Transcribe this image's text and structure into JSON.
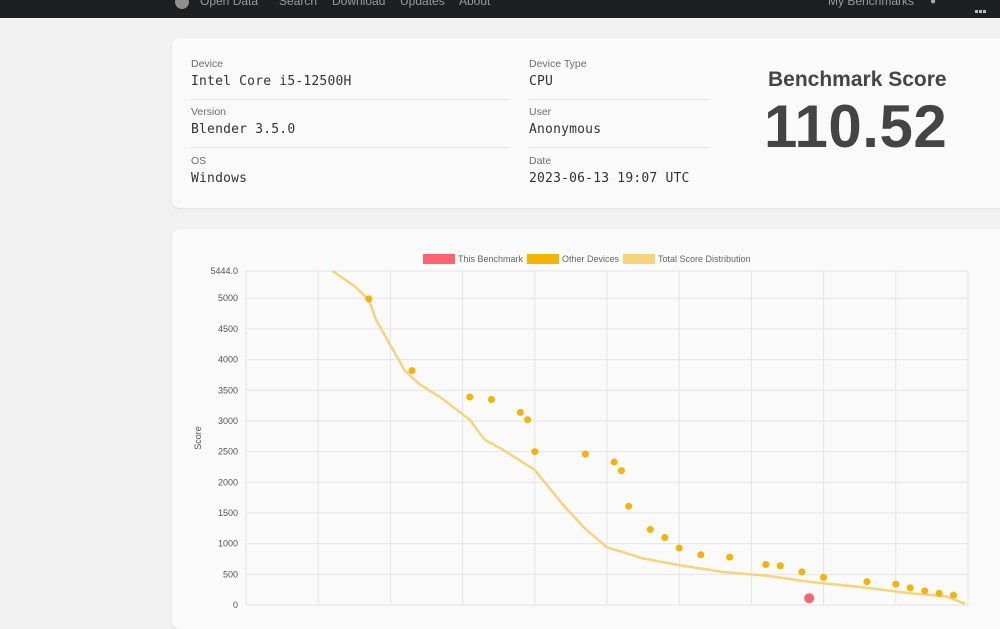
{
  "nav": {
    "items": [
      "Open Data",
      "Search",
      "Download",
      "Updates",
      "About"
    ],
    "right_label": "My Benchmarks"
  },
  "info": {
    "device_label": "Device",
    "device_value": "Intel Core i5-12500H",
    "version_label": "Version",
    "version_value": "Blender 3.5.0",
    "os_label": "OS",
    "os_value": "Windows",
    "device_type_label": "Device Type",
    "device_type_value": "CPU",
    "user_label": "User",
    "user_value": "Anonymous",
    "date_label": "Date",
    "date_value": "2023-06-13 19:07 UTC",
    "score_title": "Benchmark Score",
    "score_value": "110.52"
  },
  "colors": {
    "this_benchmark": "#ff6371",
    "other_devices": "#f6b400",
    "total_distribution": "#f5d57a",
    "card_bg": "#fafafa",
    "topbar_bg": "#1d1f21"
  },
  "chart_data": {
    "type": "line",
    "legend": [
      "This Benchmark",
      "Other Devices",
      "Total Score Distribution"
    ],
    "legend_position": "top-center",
    "ylabel": "Score",
    "ylim": [
      0,
      5444.0
    ],
    "y_ticks": [
      "5444.0",
      "5000",
      "4500",
      "4000",
      "3500",
      "3000",
      "2500",
      "2000",
      "1500",
      "1000",
      "500",
      "0"
    ],
    "grid": true,
    "series": [
      {
        "name": "Total Score Distribution",
        "x": [
          0.12,
          0.15,
          0.17,
          0.18,
          0.22,
          0.24,
          0.27,
          0.31,
          0.33,
          0.36,
          0.38,
          0.4,
          0.44,
          0.47,
          0.5,
          0.55,
          0.6,
          0.66,
          0.72,
          0.78,
          0.86,
          0.92,
          0.97,
          0.996
        ],
        "values": [
          5444,
          5200,
          4980,
          4650,
          3820,
          3600,
          3380,
          3020,
          2700,
          2500,
          2350,
          2200,
          1620,
          1240,
          940,
          760,
          650,
          540,
          480,
          380,
          280,
          190,
          140,
          20
        ]
      },
      {
        "name": "Other Devices",
        "x": [
          0.17,
          0.23,
          0.31,
          0.34,
          0.38,
          0.39,
          0.4,
          0.47,
          0.51,
          0.52,
          0.53,
          0.56,
          0.58,
          0.6,
          0.63,
          0.67,
          0.72,
          0.74,
          0.77,
          0.8,
          0.86,
          0.9,
          0.92,
          0.94,
          0.96,
          0.98
        ],
        "values": [
          4990,
          3820,
          3390,
          3350,
          3140,
          3020,
          2500,
          2460,
          2330,
          2190,
          1610,
          1230,
          1100,
          930,
          820,
          780,
          660,
          640,
          540,
          450,
          380,
          340,
          280,
          230,
          190,
          160
        ]
      },
      {
        "name": "This Benchmark",
        "x": [
          0.78
        ],
        "values": [
          110.52
        ]
      }
    ]
  }
}
